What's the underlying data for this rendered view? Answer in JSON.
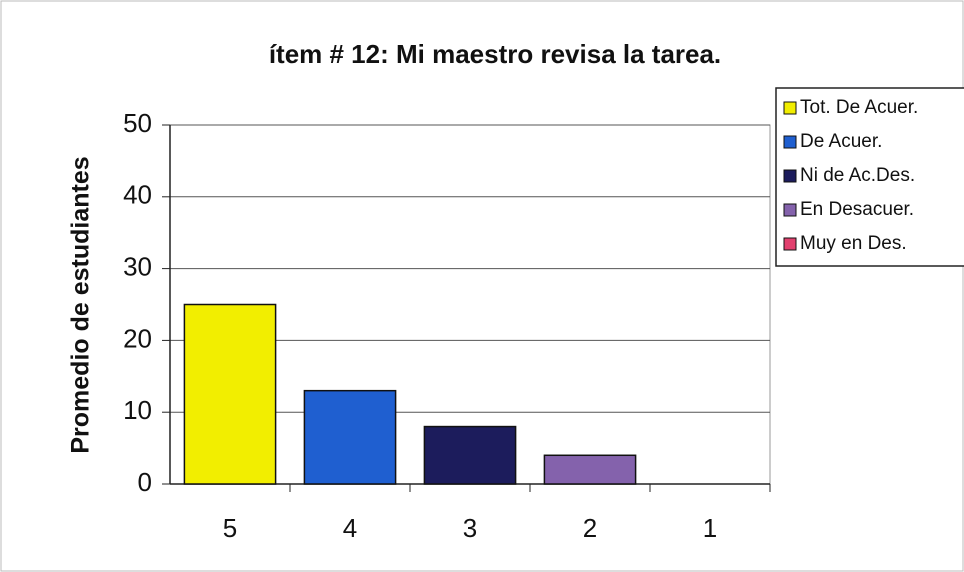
{
  "chart_data": {
    "type": "bar",
    "title": "ítem # 12:  Mi maestro revisa la tarea.",
    "y_label": "Promedio de estudiantes",
    "categories": [
      "5",
      "4",
      "3",
      "2",
      "1"
    ],
    "series": [
      {
        "name": "Tot. De Acuer.",
        "color": "#f2ee00",
        "values": [
          25,
          null,
          null,
          null,
          null
        ]
      },
      {
        "name": "De Acuer.",
        "color": "#1f5fd0",
        "values": [
          null,
          13,
          null,
          null,
          null
        ]
      },
      {
        "name": "Ni de Ac.Des.",
        "color": "#1c1c5c",
        "values": [
          null,
          null,
          8,
          null,
          null
        ]
      },
      {
        "name": "En Desacuer.",
        "color": "#8462ac",
        "values": [
          null,
          null,
          null,
          4,
          null
        ]
      },
      {
        "name": "Muy en Des.",
        "color": "#e2406e",
        "values": [
          null,
          null,
          null,
          null,
          0
        ]
      }
    ],
    "ylim": [
      0,
      50
    ],
    "yticks": [
      0,
      10,
      20,
      30,
      40,
      50
    ],
    "grid": true,
    "legend": "right"
  }
}
